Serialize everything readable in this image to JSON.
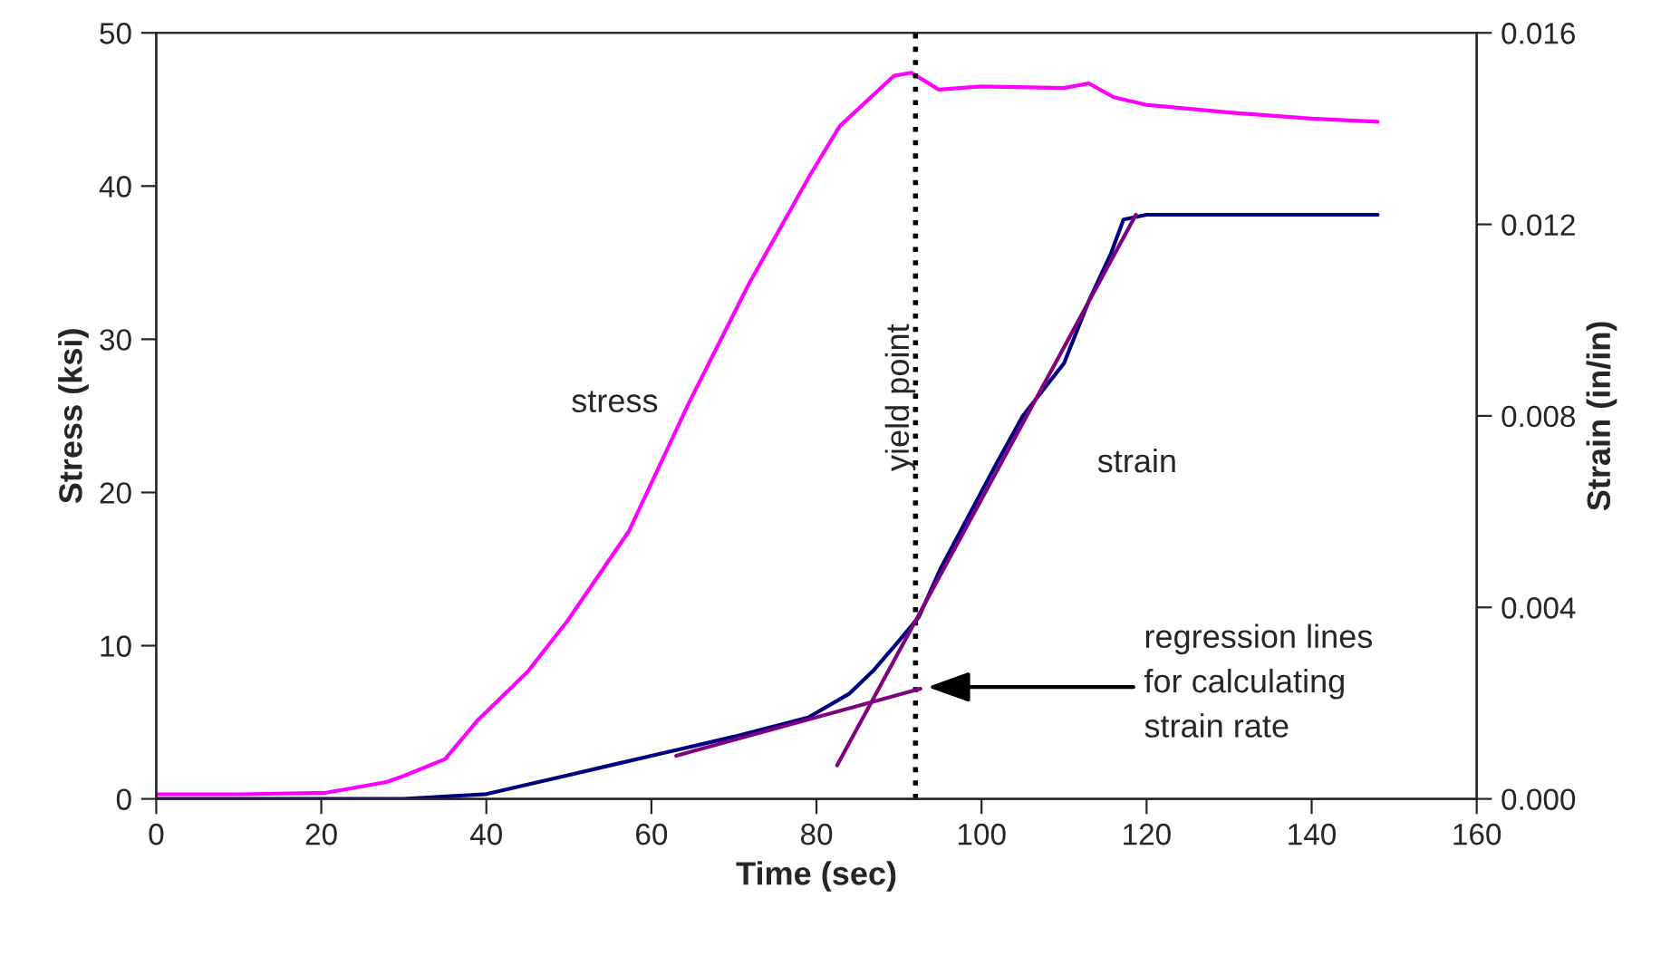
{
  "chart_data": {
    "type": "line",
    "xlabel": "Time (sec)",
    "ylabel": "Stress (ksi)",
    "y2label": "Strain (in/in)",
    "xlim": [
      0,
      160
    ],
    "xticks": [
      0,
      20,
      40,
      60,
      80,
      100,
      120,
      140,
      160
    ],
    "ylim": [
      0,
      50
    ],
    "yticks": [
      0,
      10,
      20,
      30,
      40,
      50
    ],
    "y2lim": [
      0,
      0.016
    ],
    "y2ticks": [
      {
        "value": 0,
        "label": "0.000"
      },
      {
        "value": 0.004,
        "label": "0.004"
      },
      {
        "value": 0.008,
        "label": "0.008"
      },
      {
        "value": 0.012,
        "label": "0.012"
      },
      {
        "value": 0.016,
        "label": "0.016"
      }
    ],
    "grid": false,
    "legend": false,
    "series": [
      {
        "name": "stress",
        "color": "#ff00ff",
        "x": [
          0,
          10,
          20.6,
          27.9,
          30,
          35,
          38.9,
          45,
          49.8,
          57.3,
          64.5,
          71.8,
          79.2,
          82.8,
          89.4,
          91.5,
          94.8,
          100,
          110,
          113,
          116,
          120,
          130,
          140,
          148
        ],
        "values": [
          0.3,
          0.3,
          0.4,
          1.1,
          1.5,
          2.6,
          5.1,
          8.3,
          11.6,
          17.5,
          25.8,
          33.6,
          40.7,
          43.9,
          47.2,
          47.4,
          46.3,
          46.5,
          46.4,
          46.7,
          45.8,
          45.3,
          44.8,
          44.4,
          44.2
        ]
      },
      {
        "name": "strain",
        "color": "#000080",
        "axis": "y2",
        "x": [
          0,
          10,
          20,
          30,
          40,
          45,
          50,
          55,
          60,
          70,
          79,
          84,
          87,
          90,
          92.4,
          95,
          101.8,
          105,
          110,
          113,
          115.7,
          117.2,
          120,
          130,
          140,
          148
        ],
        "values": [
          0,
          0,
          0,
          0,
          0.0001,
          0.0003,
          0.0005,
          0.0007,
          0.0009,
          0.0013,
          0.0017,
          0.0022,
          0.0027,
          0.0033,
          0.0038,
          0.0048,
          0.007,
          0.008,
          0.0091,
          0.0104,
          0.0114,
          0.0121,
          0.0122,
          0.0122,
          0.0122,
          0.0122
        ]
      },
      {
        "color": "#800080",
        "axis": "y2",
        "x": [
          63,
          92.6
        ],
        "values": [
          0.0009,
          0.0023
        ]
      },
      {
        "color": "#800080",
        "axis": "y2",
        "x": [
          82.5,
          118.7
        ],
        "values": [
          0.0007,
          0.0122
        ]
      }
    ],
    "ref_lines": [
      {
        "axis": "x",
        "value": 92,
        "label": "yield point",
        "color": "#000000",
        "line_style": "dotted"
      }
    ],
    "annotations": [
      "regression lines\nfor calculating\nstrain rate"
    ]
  }
}
